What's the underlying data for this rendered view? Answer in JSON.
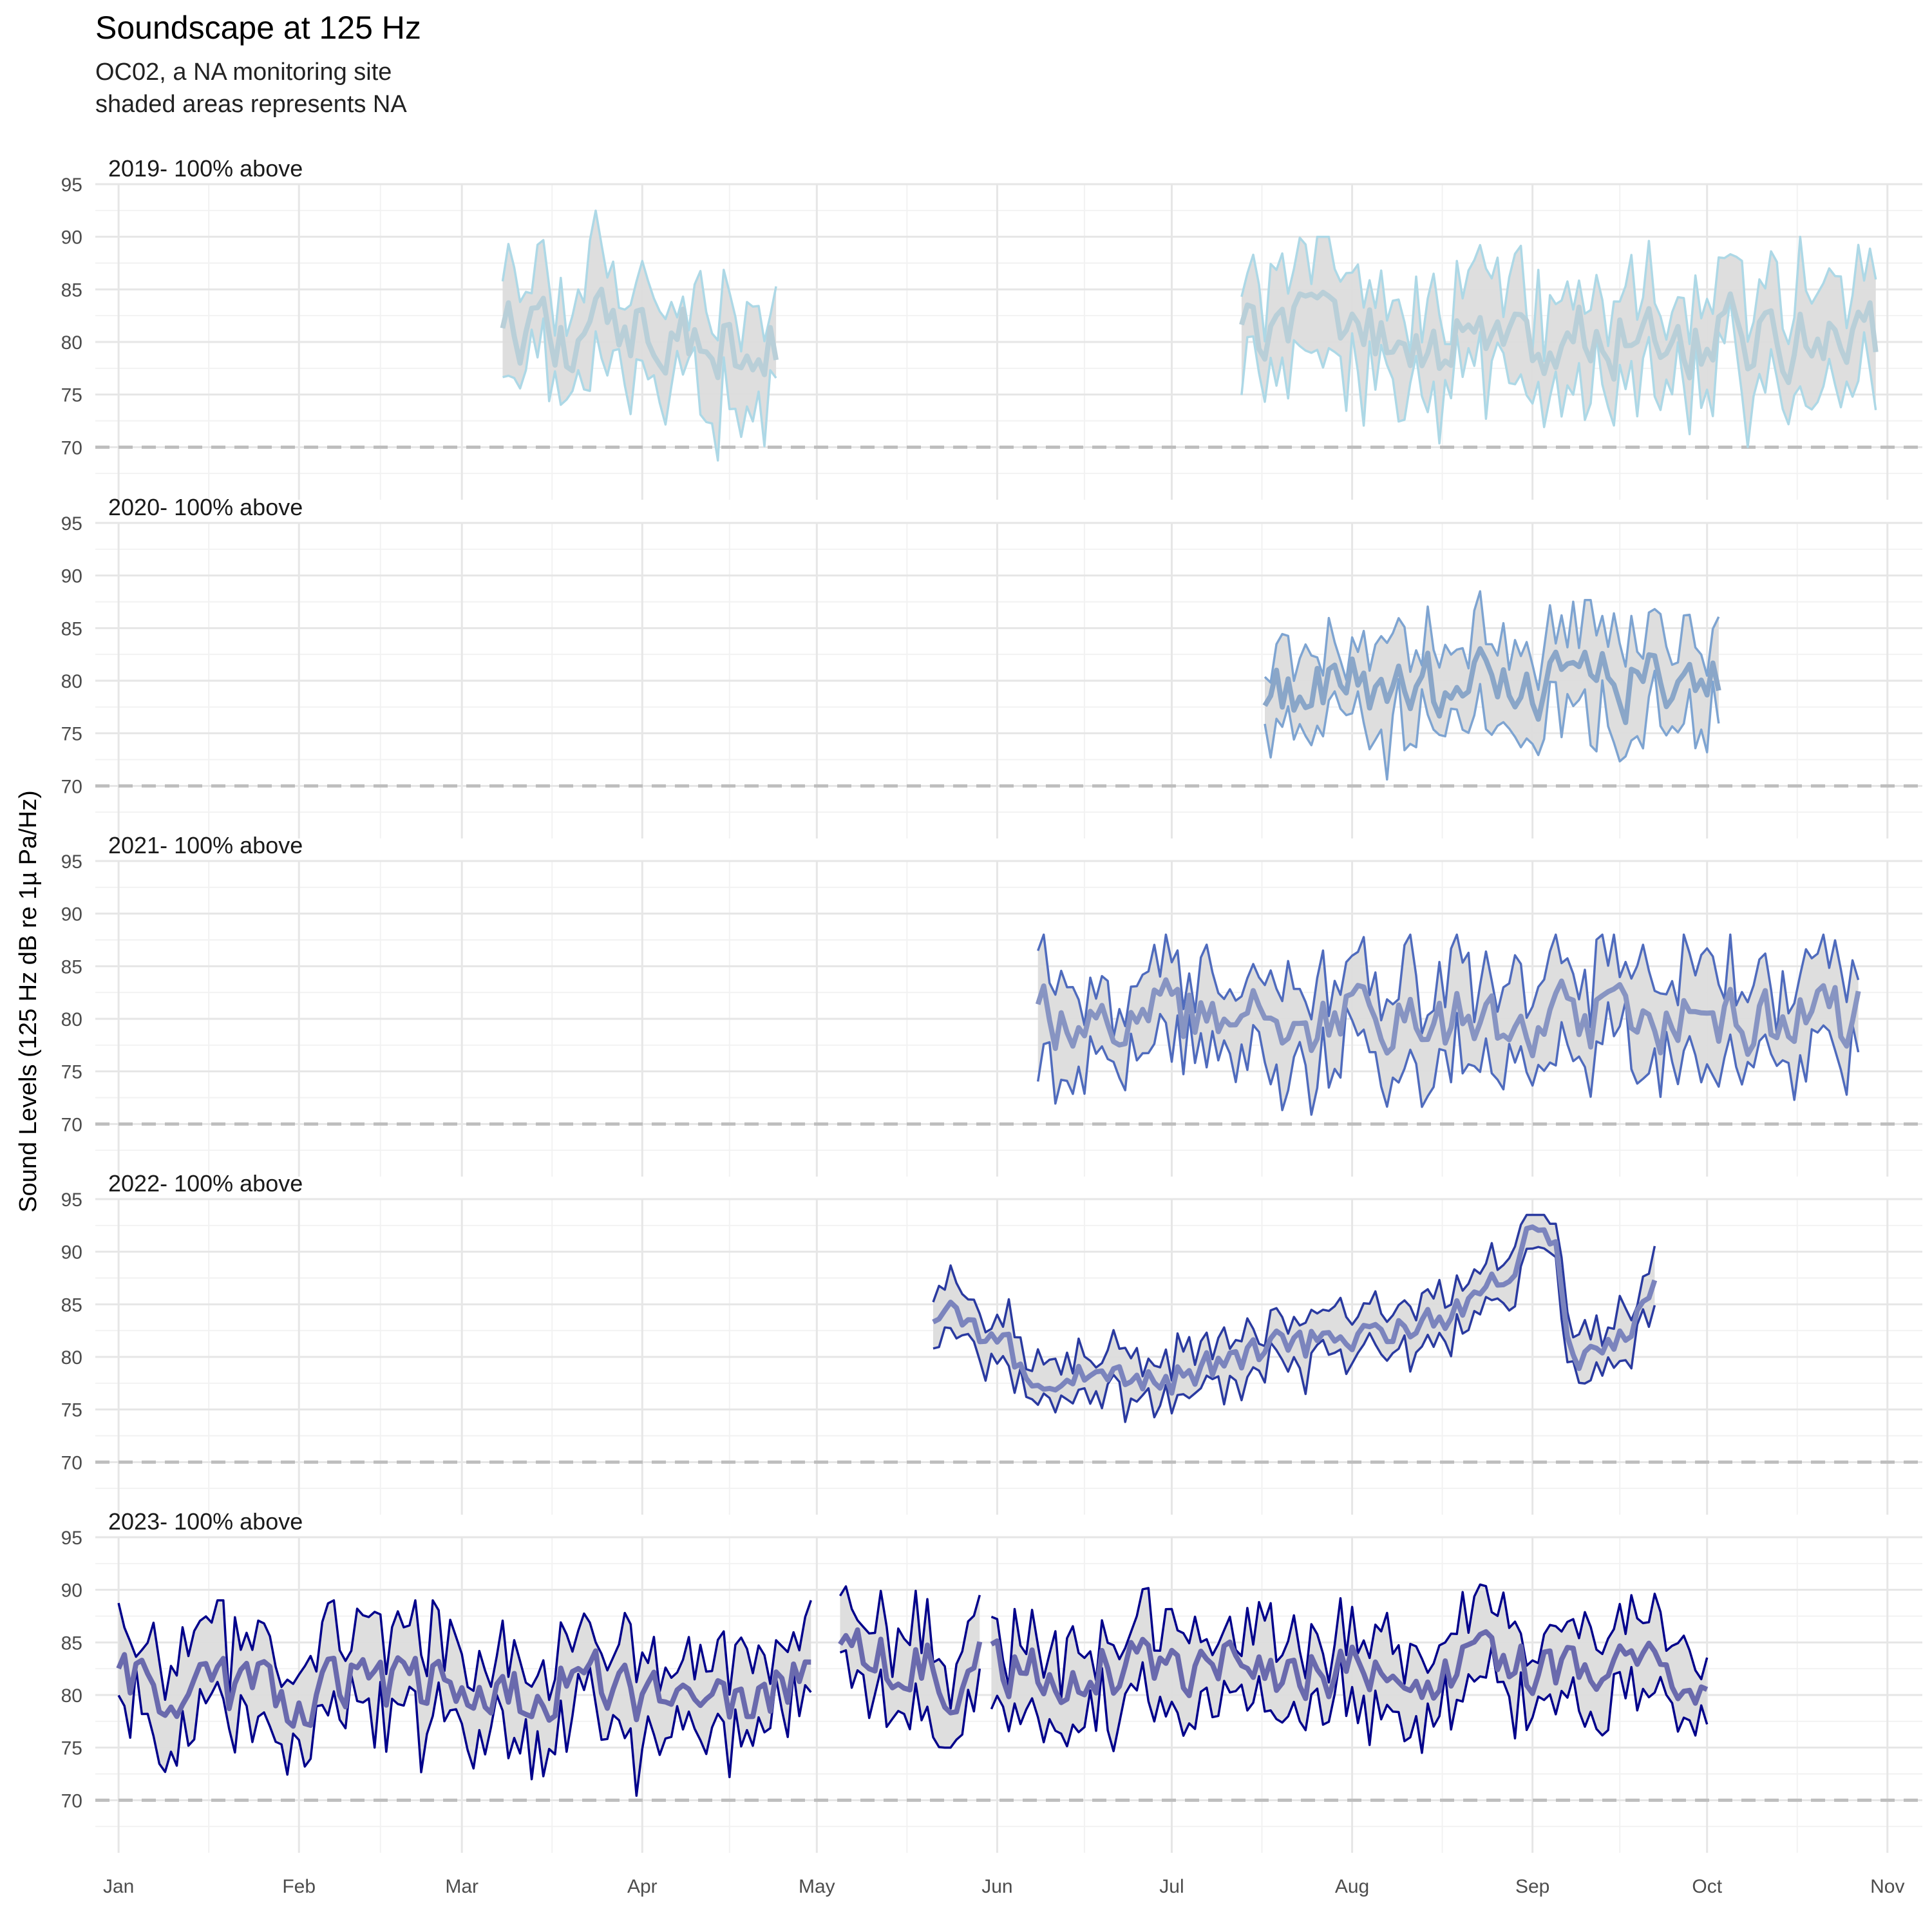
{
  "chart_data": {
    "type": "line",
    "title": "Soundscape at 125 Hz",
    "subtitle_lines": [
      "OC02, a NA monitoring site",
      "shaded areas represents NA"
    ],
    "ylabel": "Sound Levels (125 Hz dB re 1µ Pa/Hz)",
    "xlabel": "",
    "ylim": [
      65,
      95
    ],
    "y_ticks": [
      70,
      75,
      80,
      85,
      90,
      95
    ],
    "reference_line": 70,
    "x_domain_days": [
      -4,
      310
    ],
    "x_ticks": [
      {
        "label": "Jan",
        "day": 0
      },
      {
        "label": "Feb",
        "day": 31
      },
      {
        "label": "Mar",
        "day": 59
      },
      {
        "label": "Apr",
        "day": 90
      },
      {
        "label": "May",
        "day": 120
      },
      {
        "label": "Jun",
        "day": 151
      },
      {
        "label": "Jul",
        "day": 181
      },
      {
        "label": "Aug",
        "day": 212
      },
      {
        "label": "Sep",
        "day": 243
      },
      {
        "label": "Oct",
        "day": 273
      },
      {
        "label": "Nov",
        "day": 304
      }
    ],
    "grid": true,
    "legend": "none",
    "band_fill": "#dcdcdc",
    "series": [
      {
        "label": "2019- 100% above",
        "color": "#add8e6",
        "median_color": "#b9cfd8",
        "segments": [
          {
            "start": "2019-03-08",
            "end": "2019-04-24",
            "median_level": 80.5,
            "band_halfwidth": 4.5,
            "volatility": 5,
            "min": 68,
            "max": 92.5
          },
          {
            "start": "2019-07-13",
            "end": "2019-10-30",
            "median_level": 80.5,
            "band_halfwidth": 4.5,
            "volatility": 5,
            "min": 69,
            "max": 90
          }
        ]
      },
      {
        "label": "2020- 100% above",
        "color": "#7ea4d1",
        "median_color": "#8aa6c8",
        "segments": [
          {
            "start": "2020-07-16",
            "end": "2020-10-02",
            "median_level": 79.5,
            "band_halfwidth": 4,
            "volatility": 4.5,
            "min": 69.5,
            "max": 88.5
          }
        ]
      },
      {
        "label": "2021- 100% above",
        "color": "#4f6bbd",
        "median_color": "#8794c2",
        "segments": [
          {
            "start": "2021-06-08",
            "end": "2021-10-27",
            "median_level": 80,
            "band_halfwidth": 4,
            "volatility": 4.5,
            "min": 67.5,
            "max": 88
          }
        ]
      },
      {
        "label": "2022- 100% above",
        "color": "#2a3aa0",
        "median_color": "#7b84bd",
        "segments": [
          {
            "start": "2022-05-21",
            "end": "2022-09-22",
            "median_level": 81,
            "band_halfwidth": 2,
            "volatility": 2.5,
            "min": 71.5,
            "max": 93.5,
            "trend": [
              [
                141,
                84
              ],
              [
                160,
                78
              ],
              [
                180,
                77.5
              ],
              [
                200,
                81
              ],
              [
                220,
                82
              ],
              [
                235,
                86
              ],
              [
                243,
                92
              ],
              [
                247,
                90
              ],
              [
                250,
                79
              ],
              [
                260,
                82
              ],
              [
                265,
                88
              ],
              [
                270,
                84
              ]
            ]
          }
        ]
      },
      {
        "label": "2023- 100% above",
        "color": "#00008b",
        "median_color": "#6a6aad",
        "segments": [
          {
            "start": "2023-01-01",
            "end": "2023-04-30",
            "median_level": 80.5,
            "band_halfwidth": 4,
            "volatility": 4.5,
            "min": 66.5,
            "max": 89
          },
          {
            "start": "2023-05-05",
            "end": "2023-05-29",
            "median_level": 82.5,
            "band_halfwidth": 4,
            "volatility": 4.5,
            "min": 75,
            "max": 91.5
          },
          {
            "start": "2023-05-31",
            "end": "2023-10-01",
            "median_level": 82.5,
            "band_halfwidth": 3.5,
            "volatility": 4,
            "min": 74.5,
            "max": 90.5
          }
        ]
      }
    ]
  }
}
